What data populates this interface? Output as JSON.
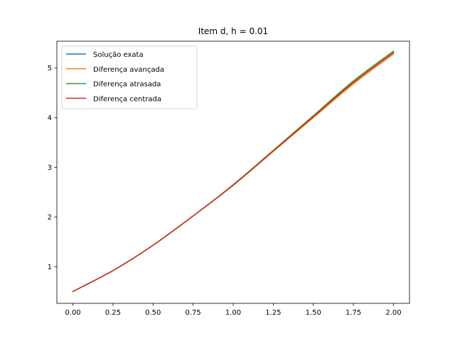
{
  "chart_data": {
    "type": "line",
    "title": "Item d, h = 0.01",
    "xlabel": "",
    "ylabel": "",
    "xlim": [
      -0.1,
      2.1
    ],
    "ylim": [
      0.26,
      5.54
    ],
    "xticks": [
      0.0,
      0.25,
      0.5,
      0.75,
      1.0,
      1.25,
      1.5,
      1.75,
      2.0
    ],
    "xtick_labels": [
      "0.00",
      "0.25",
      "0.50",
      "0.75",
      "1.00",
      "1.25",
      "1.50",
      "1.75",
      "2.00"
    ],
    "yticks": [
      1,
      2,
      3,
      4,
      5
    ],
    "ytick_labels": [
      "1",
      "2",
      "3",
      "4",
      "5"
    ],
    "grid": false,
    "legend_position": "top-left",
    "x": [
      0.0,
      0.25,
      0.5,
      0.75,
      1.0,
      1.25,
      1.5,
      1.75,
      2.0
    ],
    "series": [
      {
        "name": "Solução exata",
        "color": "#1f77b4",
        "values": [
          0.5,
          0.92,
          1.43,
          2.02,
          2.64,
          3.33,
          4.02,
          4.71,
          5.31
        ]
      },
      {
        "name": "Diferença avançada",
        "color": "#ff7f0e",
        "values": [
          0.5,
          0.92,
          1.43,
          2.02,
          2.64,
          3.32,
          4.0,
          4.68,
          5.28
        ]
      },
      {
        "name": "Diferença atrasada",
        "color": "#2ca02c",
        "values": [
          0.5,
          0.92,
          1.43,
          2.02,
          2.65,
          3.34,
          4.04,
          4.74,
          5.34
        ]
      },
      {
        "name": "Diferença centrada",
        "color": "#d62728",
        "values": [
          0.5,
          0.92,
          1.43,
          2.02,
          2.64,
          3.33,
          4.02,
          4.71,
          5.31
        ]
      }
    ]
  }
}
